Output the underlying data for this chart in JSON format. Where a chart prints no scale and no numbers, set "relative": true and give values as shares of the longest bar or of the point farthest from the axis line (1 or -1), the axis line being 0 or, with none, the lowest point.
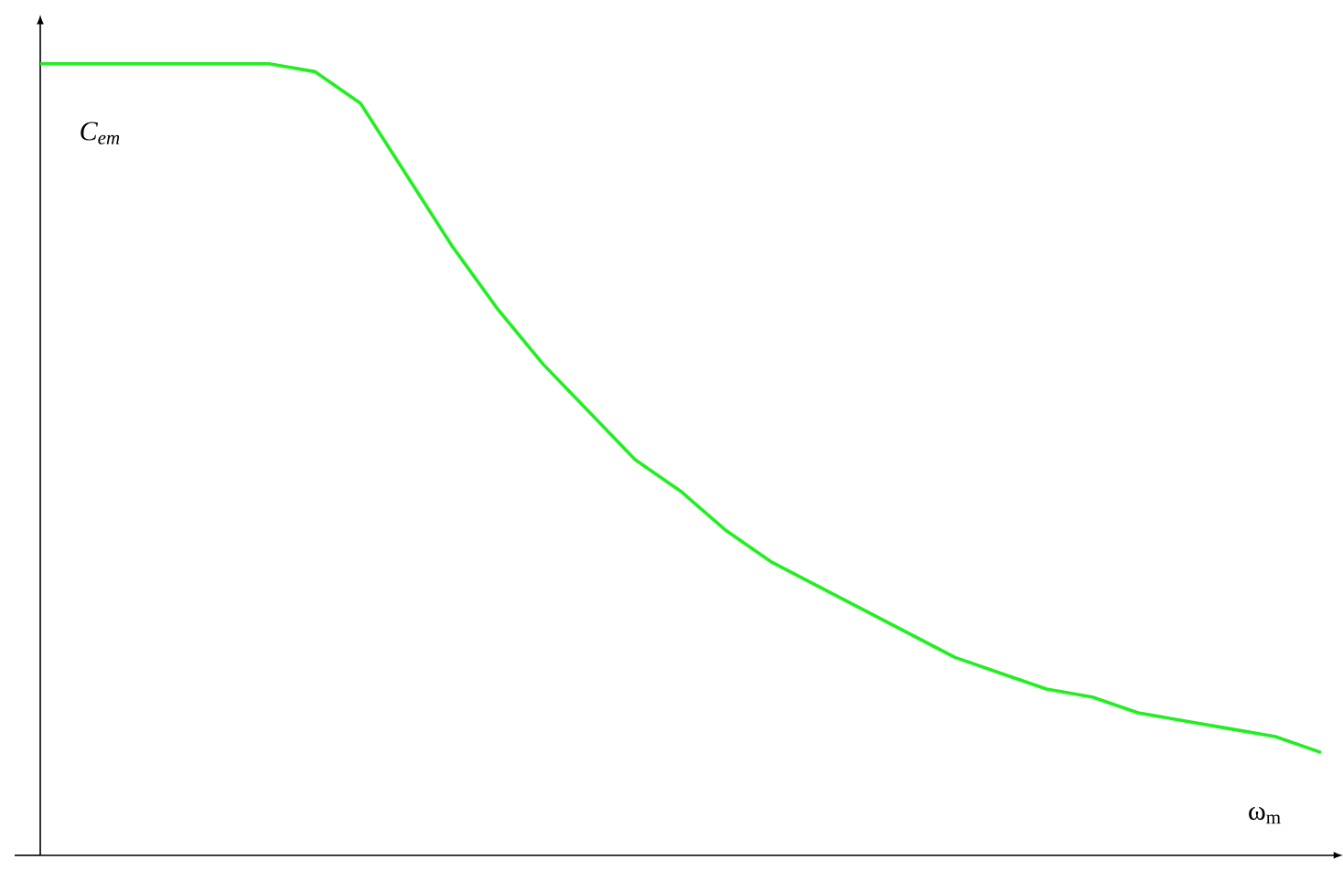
{
  "chart_data": {
    "type": "line",
    "relative": true,
    "xlabel": "ω$_{m}$",
    "ylabel": "C$_{em}$",
    "color": "#22ee22",
    "categories": [
      null,
      null,
      null,
      null,
      null,
      null,
      null,
      null,
      null,
      null,
      null,
      null,
      null,
      null,
      null,
      null,
      null,
      null,
      null,
      null,
      null,
      null,
      null,
      null,
      null,
      null,
      null,
      null,
      null
    ],
    "values": [
      1,
      1,
      1,
      1,
      1,
      1,
      0.99,
      0.95,
      0.86,
      0.77,
      0.69,
      0.62,
      0.56,
      0.5,
      0.46,
      0.41,
      0.37,
      0.34,
      0.31,
      0.28,
      0.25,
      0.23,
      0.21,
      0.2,
      0.18,
      0.17,
      0.16,
      0.15,
      0.13
    ]
  }
}
